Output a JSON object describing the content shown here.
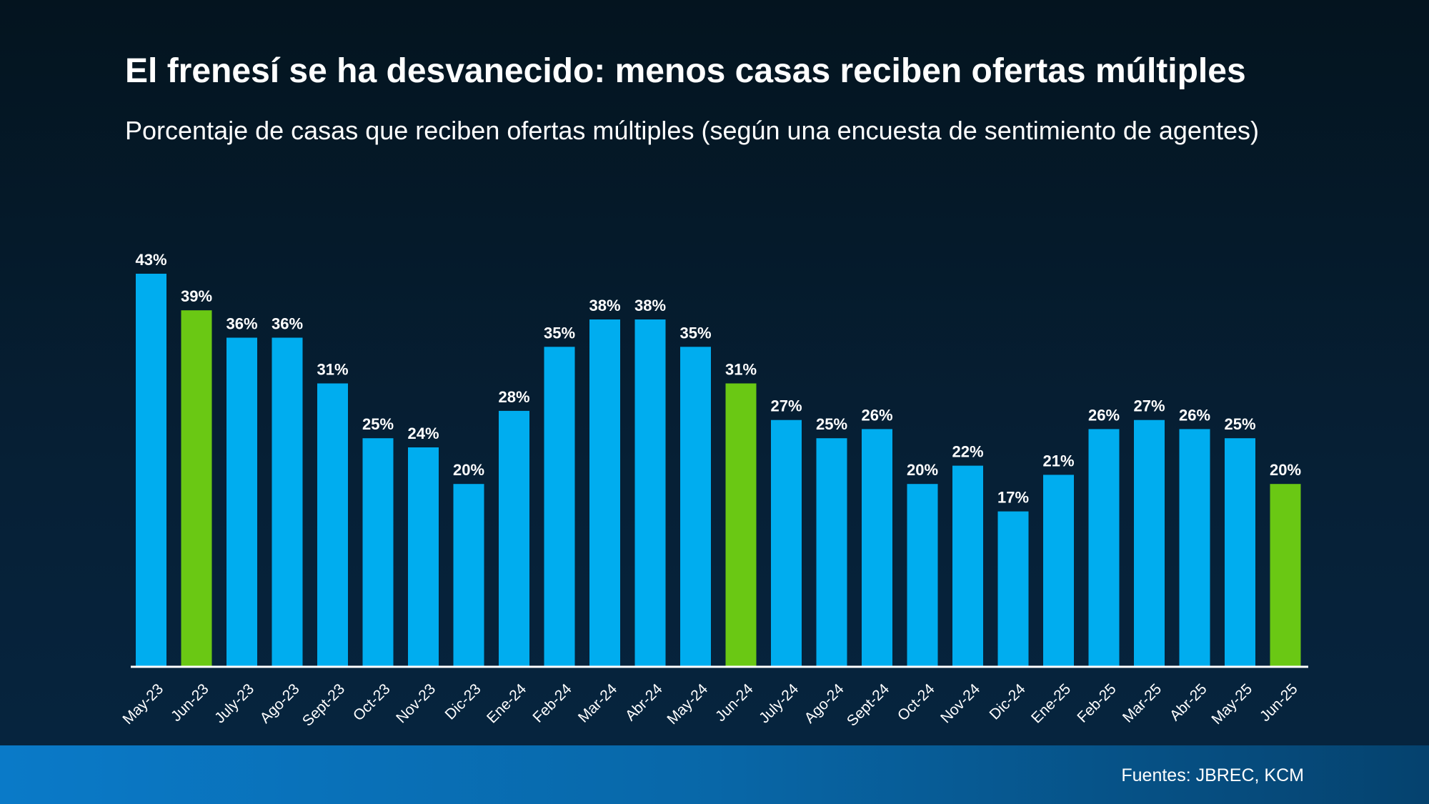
{
  "colors": {
    "bar": "#00adef",
    "highlight": "#6ac814",
    "axis": "#ffffff",
    "label": "#ffffff"
  },
  "footer": {
    "source": "Fuentes: JBREC, KCM"
  },
  "chart_data": {
    "type": "bar",
    "title": "El frenesí se ha desvanecido: menos casas reciben ofertas múltiples",
    "subtitle": "Porcentaje de casas que reciben ofertas múltiples (según una encuesta de sentimiento de agentes)",
    "xlabel": "",
    "ylabel": "",
    "ylim": [
      0,
      43
    ],
    "grid": false,
    "legend": "none",
    "categories": [
      "May-23",
      "Jun-23",
      "July-23",
      "Ago-23",
      "Sept-23",
      "Oct-23",
      "Nov-23",
      "Dic-23",
      "Ene-24",
      "Feb-24",
      "Mar-24",
      "Abr-24",
      "May-24",
      "Jun-24",
      "July-24",
      "Ago-24",
      "Sept-24",
      "Oct-24",
      "Nov-24",
      "Dic-24",
      "Ene-25",
      "Feb-25",
      "Mar-25",
      "Abr-25",
      "May-25",
      "Jun-25"
    ],
    "values": [
      43,
      39,
      36,
      36,
      31,
      25,
      24,
      20,
      28,
      35,
      38,
      38,
      35,
      31,
      27,
      25,
      26,
      20,
      22,
      17,
      21,
      26,
      27,
      26,
      25,
      20
    ],
    "data_labels": [
      "43%",
      "39%",
      "36%",
      "36%",
      "31%",
      "25%",
      "24%",
      "20%",
      "28%",
      "35%",
      "38%",
      "38%",
      "35%",
      "31%",
      "27%",
      "25%",
      "26%",
      "20%",
      "22%",
      "17%",
      "21%",
      "26%",
      "27%",
      "26%",
      "25%",
      "20%"
    ],
    "highlighted": [
      "Jun-23",
      "Jun-24",
      "Jun-25"
    ]
  }
}
